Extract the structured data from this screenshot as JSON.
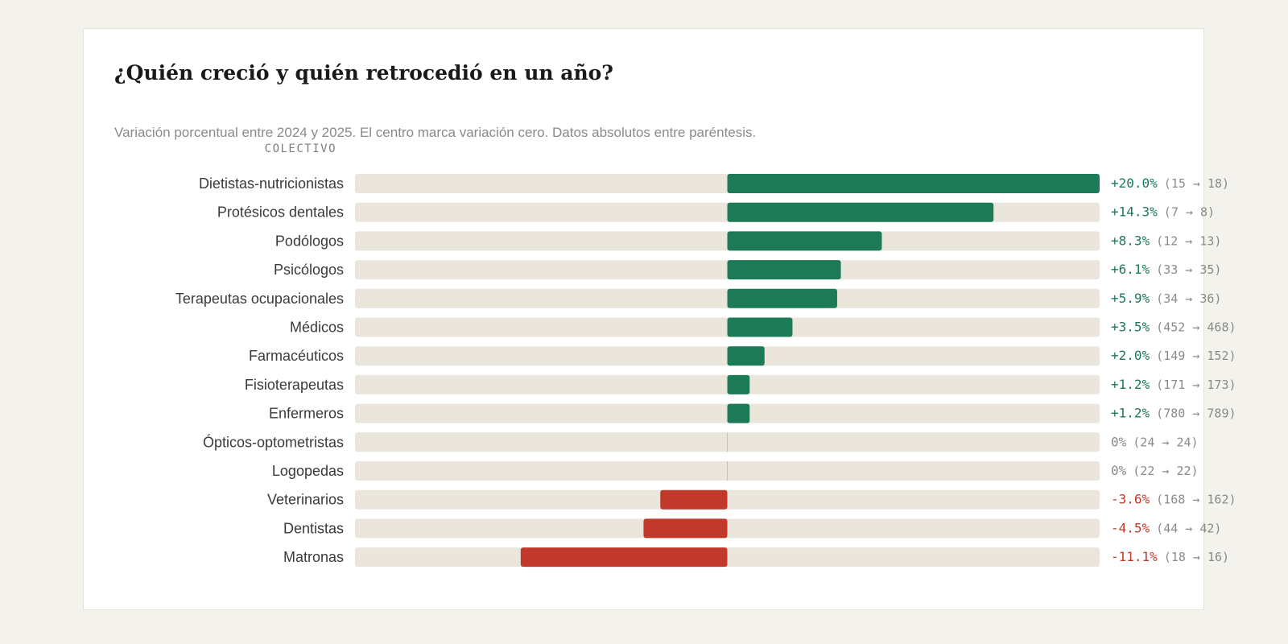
{
  "header": {
    "title": "¿Quién creció y quién retrocedió en un año?",
    "subtitle": "Variación porcentual entre 2024 y 2025. El centro marca variación cero. Datos absolutos entre paréntesis.",
    "column_label": "COLECTIVO"
  },
  "colors": {
    "positive": "#1c7a57",
    "negative": "#c0392b",
    "neutral": "#8a8a86",
    "track": "#ebe6dc",
    "zero_line": "#c7c2b6"
  },
  "chart_data": {
    "type": "bar",
    "orientation": "horizontal",
    "diverging": true,
    "xlim": [
      -20,
      20
    ],
    "rows": [
      {
        "label": "Dietistas-nutricionistas",
        "value": 20.0,
        "pct_text": "+20.0%",
        "abs_text": "(15 → 18)"
      },
      {
        "label": "Protésicos dentales",
        "value": 14.3,
        "pct_text": "+14.3%",
        "abs_text": "(7 → 8)"
      },
      {
        "label": "Podólogos",
        "value": 8.3,
        "pct_text": "+8.3%",
        "abs_text": "(12 → 13)"
      },
      {
        "label": "Psicólogos",
        "value": 6.1,
        "pct_text": "+6.1%",
        "abs_text": "(33 → 35)"
      },
      {
        "label": "Terapeutas ocupacionales",
        "value": 5.9,
        "pct_text": "+5.9%",
        "abs_text": "(34 → 36)"
      },
      {
        "label": "Médicos",
        "value": 3.5,
        "pct_text": "+3.5%",
        "abs_text": "(452 → 468)"
      },
      {
        "label": "Farmacéuticos",
        "value": 2.0,
        "pct_text": "+2.0%",
        "abs_text": "(149 → 152)"
      },
      {
        "label": "Fisioterapeutas",
        "value": 1.2,
        "pct_text": "+1.2%",
        "abs_text": "(171 → 173)"
      },
      {
        "label": "Enfermeros",
        "value": 1.2,
        "pct_text": "+1.2%",
        "abs_text": "(780 → 789)"
      },
      {
        "label": "Ópticos-optometristas",
        "value": 0,
        "pct_text": "0%",
        "abs_text": "(24 → 24)"
      },
      {
        "label": "Logopedas",
        "value": 0,
        "pct_text": "0%",
        "abs_text": "(22 → 22)"
      },
      {
        "label": "Veterinarios",
        "value": -3.6,
        "pct_text": "-3.6%",
        "abs_text": "(168 → 162)"
      },
      {
        "label": "Dentistas",
        "value": -4.5,
        "pct_text": "-4.5%",
        "abs_text": "(44 → 42)"
      },
      {
        "label": "Matronas",
        "value": -11.1,
        "pct_text": "-11.1%",
        "abs_text": "(18 → 16)"
      }
    ]
  }
}
